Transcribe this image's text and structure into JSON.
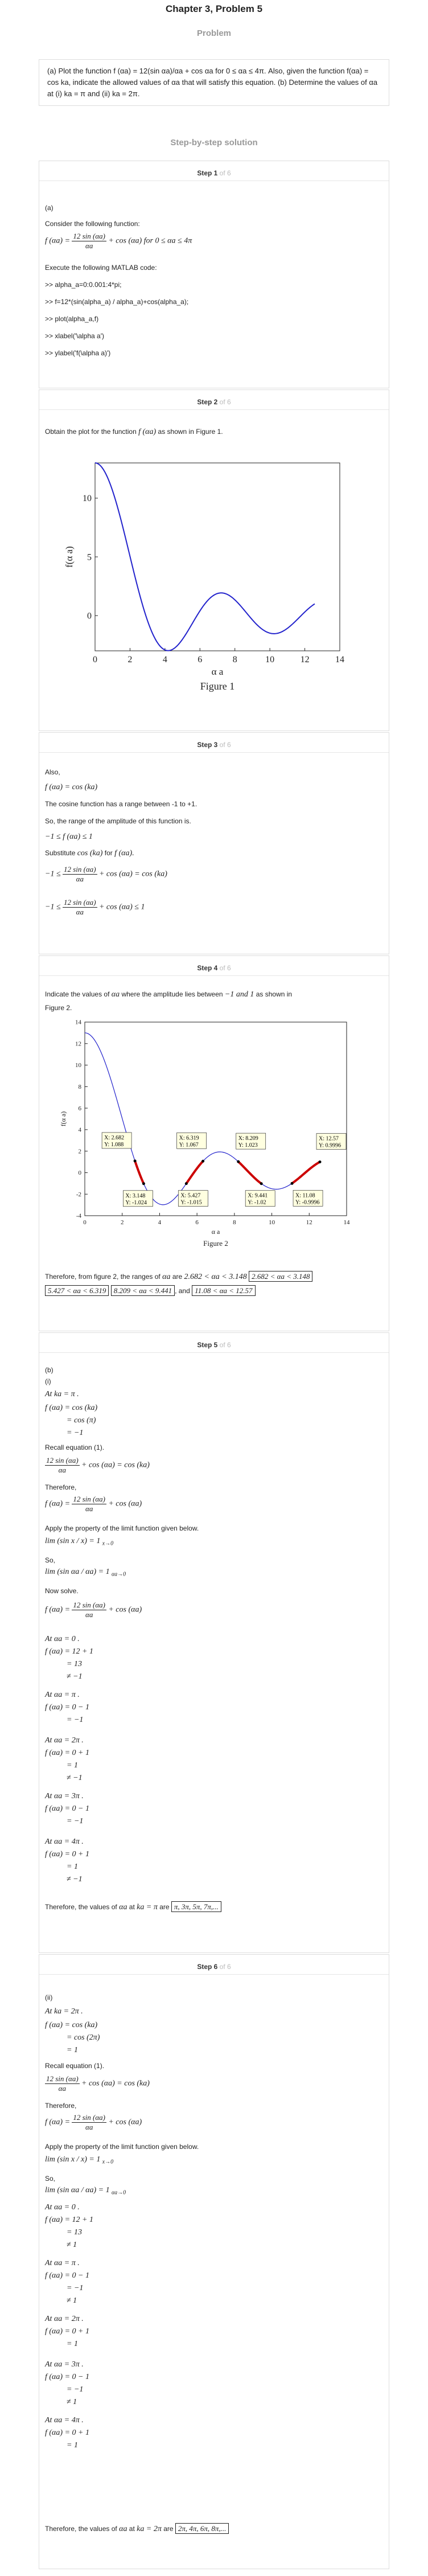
{
  "header": {
    "title": "Chapter 3, Problem 5",
    "problem_label": "Problem"
  },
  "problem_text": "(a) Plot the function f (αa) = 12(sin αa)/αa + cos αa for 0 ≤ αa ≤ 4π. Also, given the function f(αa) = cos ka, indicate the allowed values of αa that will satisfy this equation. (b) Determine the values of αa at (i) ka = π and (ii) ka = 2π.",
  "solution_label": "Step-by-step solution",
  "steps": [
    {
      "label": "Step 1",
      "of": "of 6"
    },
    {
      "label": "Step 2",
      "of": "of 6"
    },
    {
      "label": "Step 3",
      "of": "of 6"
    },
    {
      "label": "Step 4",
      "of": "of 6"
    },
    {
      "label": "Step 5",
      "of": "of 6"
    },
    {
      "label": "Step 6",
      "of": "of 6"
    }
  ],
  "step1": {
    "part": "(a)",
    "intro": "Consider the following function:",
    "func_lhs": "f (αa) =",
    "func_num": "12 sin (αa)",
    "func_den": "αa",
    "func_rhs": "+ cos (αa)  for 0 ≤ αa ≤ 4π",
    "execute": "Execute the following MATLAB code:",
    "code": [
      ">> alpha_a=0:0.001:4*pi;",
      ">> f=12*(sin(alpha_a) / alpha_a)+cos(alpha_a);",
      ">> plot(alpha_a,f)",
      ">> xlabel('\\alpha a')",
      ">> ylabel('f(\\alpha a)')"
    ]
  },
  "step2": {
    "text_a": "Obtain the plot for the function",
    "text_f": "f (αa)",
    "text_b": "as shown in Figure 1.",
    "figure_caption": "Figure 1",
    "xlabel": "α a",
    "ylabel": "f(α a)",
    "xticks": [
      "0",
      "2",
      "4",
      "6",
      "8",
      "10",
      "12",
      "14"
    ],
    "yticks": [
      "10",
      "5",
      "0"
    ]
  },
  "step3": {
    "also": "Also,",
    "eq1": "f (αa) = cos (ka)",
    "range_text": "The cosine function has a range between -1 to +1.",
    "so_text": "So, the range of the amplitude of this function is.",
    "ineq1": "−1 ≤ f (αa) ≤ 1",
    "subst_a": "Substitute",
    "subst_cos": "cos (ka)",
    "subst_b": "for",
    "subst_f": "f (αa).",
    "eq2_lhs": "−1 ≤",
    "eq2_rhs": "+ cos (αa) = cos (ka)",
    "eq3_lhs": "−1 ≤",
    "eq3_rhs": "+ cos (αa) ≤ 1",
    "num": "12 sin (αa)",
    "den": "αa"
  },
  "step4": {
    "text_a": "Indicate the values of",
    "text_aa": "αa",
    "text_b": "where the amplitude lies between",
    "text_range": "−1 and 1",
    "text_c": "as shown in",
    "text_d": "Figure 2.",
    "figure_caption": "Figure 2",
    "xlabel": "α a",
    "ylabel": "f(α a)",
    "xticks": [
      "0",
      "2",
      "4",
      "6",
      "8",
      "10",
      "12",
      "14"
    ],
    "yticks": [
      "14",
      "12",
      "10",
      "8",
      "6",
      "4",
      "2",
      "0",
      "-2",
      "-4"
    ],
    "datatips": [
      {
        "x": "X: 2.682",
        "y": "Y: 1.088"
      },
      {
        "x": "X: 3.148",
        "y": "Y: -1.024"
      },
      {
        "x": "X: 5.427",
        "y": "Y: -1.015"
      },
      {
        "x": "X: 6.319",
        "y": "Y: 1.067"
      },
      {
        "x": "X: 8.209",
        "y": "Y: 1.023"
      },
      {
        "x": "X: 9.441",
        "y": "Y: -1.02"
      },
      {
        "x": "X: 11.08",
        "y": "Y: -0.9996"
      },
      {
        "x": "X: 12.57",
        "y": "Y: 0.9996"
      }
    ],
    "therefore_a": "Therefore, from figure 2, the ranges of",
    "therefore_aa": "αa",
    "therefore_b": "are",
    "r1": "2.682 < αa < 3.148",
    "r2": "2.682 < αa < 3.148",
    "r3": "5.427 < αa < 6.319",
    "r4": "8.209 < αa < 9.441",
    "r_and": ", and",
    "r5": "11.08 < αa < 12.57"
  },
  "step5": {
    "part": "(b)",
    "sub": "(i)",
    "at_ka": "At  ka = π .",
    "f_cos_ka": "f (αa) = cos (ka)",
    "eq_cospi": "= cos (π)",
    "eq_m1": "= −1",
    "recall": "Recall equation (1).",
    "recall_rhs": "+ cos (αa) = cos (ka)",
    "therefore": "Therefore,",
    "f_lhs": "f (αa) =",
    "f_rhs": "+ cos (αa)",
    "num": "12 sin (αa)",
    "den": "αa",
    "apply": "Apply the property of the limit function given below.",
    "lim1": "lim (sin x / x) = 1",
    "lim_sub1": "x→0",
    "so": "So,",
    "lim2": "lim (sin αa / αa) = 1",
    "lim_sub2": "αa→0",
    "now_solve": "Now solve.",
    "cases": [
      {
        "at": "At  αa = 0 .",
        "l1": "f (αa) = 12 + 1",
        "l2": "= 13",
        "l3": "≠ −1"
      },
      {
        "at": "At  αa = π .",
        "l1": "f (αa) = 0 − 1",
        "l2": "= −1",
        "l3": ""
      },
      {
        "at": "At  αa = 2π .",
        "l1": "f (αa) = 0 + 1",
        "l2": "= 1",
        "l3": "≠ −1"
      },
      {
        "at": "At  αa = 3π .",
        "l1": "f (αa) = 0 − 1",
        "l2": "= −1",
        "l3": ""
      },
      {
        "at": "At  αa = 4π .",
        "l1": "f (αa) = 0 + 1",
        "l2": "= 1",
        "l3": "≠ −1"
      }
    ],
    "final_a": "Therefore, the values of",
    "final_aa": "αa",
    "final_b": "at",
    "final_ka": "ka = π",
    "final_c": "are",
    "final_box": "π, 3π, 5π, 7π,..."
  },
  "step6": {
    "sub": "(ii)",
    "at_ka": "At  ka = 2π .",
    "f_cos_ka": "f (αa) = cos (ka)",
    "eq_cos2pi": "= cos (2π)",
    "eq_1": "= 1",
    "recall": "Recall equation (1).",
    "recall_rhs": "+ cos (αa) = cos (ka)",
    "therefore": "Therefore,",
    "f_lhs": "f (αa) =",
    "f_rhs": "+ cos (αa)",
    "num": "12 sin (αa)",
    "den": "αa",
    "apply": "Apply the property of the limit function given below.",
    "lim1": "lim (sin x / x) = 1",
    "lim_sub1": "x→0",
    "so": "So,",
    "lim2": "lim (sin αa / αa) = 1",
    "lim_sub2": "αa→0",
    "cases": [
      {
        "at": "At  αa = 0 .",
        "l1": "f (αa) = 12 + 1",
        "l2": "= 13",
        "l3": "≠ 1"
      },
      {
        "at": "At  αa = π .",
        "l1": "f (αa) = 0 − 1",
        "l2": "= −1",
        "l3": "≠ 1"
      },
      {
        "at": "At  αa = 2π .",
        "l1": "f (αa) = 0 + 1",
        "l2": "= 1",
        "l3": ""
      },
      {
        "at": "At  αa = 3π .",
        "l1": "f (αa) = 0 − 1",
        "l2": "= −1",
        "l3": "≠ 1"
      },
      {
        "at": "At  αa = 4π .",
        "l1": "f (αa) = 0 + 1",
        "l2": "= 1",
        "l3": ""
      }
    ],
    "final_a": "Therefore, the values of",
    "final_aa": "αa",
    "final_b": "at",
    "final_ka": "ka = 2π",
    "final_c": "are",
    "final_box": "2π, 4π, 6π, 8π,..."
  },
  "chart_data": [
    {
      "type": "line",
      "title": "Figure 1",
      "xlabel": "α a",
      "ylabel": "f(α a)",
      "xlim": [
        0,
        14
      ],
      "ylim": [
        -3,
        13
      ],
      "x": [
        0,
        0.5,
        1,
        1.5,
        2,
        2.5,
        3,
        3.5,
        4,
        4.5,
        5,
        5.5,
        6,
        6.5,
        7,
        7.5,
        8,
        8.5,
        9,
        9.5,
        10,
        10.5,
        11,
        11.5,
        12,
        12.566
      ],
      "series": [
        {
          "values": [
            13,
            12.38,
            10.64,
            8.05,
            5.04,
            2.07,
            -0.43,
            -2.05,
            -2.92,
            -2.78,
            -2.02,
            -0.89,
            0.4,
            1.17,
            1.88,
            1.91,
            1.44,
            0.54,
            -0.49,
            -1.07,
            -1.38,
            -1.28,
            -0.81,
            -0.15,
            0.35,
            1.0
          ]
        }
      ],
      "grid": false
    },
    {
      "type": "line",
      "title": "Figure 2",
      "xlabel": "α a",
      "ylabel": "f(α a)",
      "xlim": [
        0,
        14
      ],
      "ylim": [
        -4,
        14
      ],
      "x": [
        0,
        0.5,
        1,
        1.5,
        2,
        2.5,
        3,
        3.5,
        4,
        4.5,
        5,
        5.5,
        6,
        6.5,
        7,
        7.5,
        8,
        8.5,
        9,
        9.5,
        10,
        10.5,
        11,
        11.5,
        12,
        12.566
      ],
      "series": [
        {
          "values": [
            13,
            12.38,
            10.64,
            8.05,
            5.04,
            2.07,
            -0.43,
            -2.05,
            -2.92,
            -2.78,
            -2.02,
            -0.89,
            0.4,
            1.17,
            1.88,
            1.91,
            1.44,
            0.54,
            -0.49,
            -1.07,
            -1.38,
            -1.28,
            -0.81,
            -0.15,
            0.35,
            1.0
          ]
        }
      ],
      "allowed_bands": [
        [
          2.682,
          3.148
        ],
        [
          5.427,
          6.319
        ],
        [
          8.209,
          9.441
        ],
        [
          11.08,
          12.57
        ]
      ],
      "annotations": [
        "X: 2.682 Y: 1.088",
        "X: 3.148 Y: -1.024",
        "X: 5.427 Y: -1.015",
        "X: 6.319 Y: 1.067",
        "X: 8.209 Y: 1.023",
        "X: 9.441 Y: -1.02",
        "X: 11.08 Y: -0.9996",
        "X: 12.57 Y: 0.9996"
      ],
      "colors": {
        "line": "#0000ff",
        "band": "#cc0000"
      },
      "grid": false
    }
  ]
}
